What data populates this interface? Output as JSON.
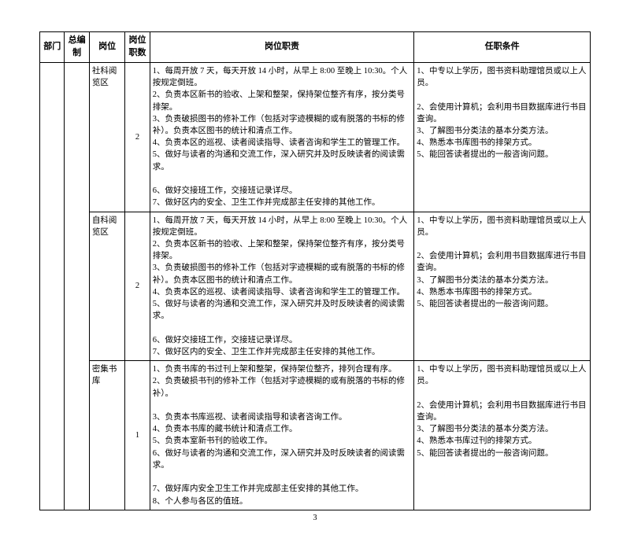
{
  "headers": {
    "department": "部门",
    "total_staff": "总编制",
    "position": "岗位",
    "position_count": "岗位职数",
    "duties": "岗位职责",
    "requirements": "任职条件"
  },
  "rows": [
    {
      "position": "社科阅览区",
      "count": "2",
      "duties_lines": [
        "1、每周开放 7 天，每天开放 14 小时，从早上 8:00 至晚上 10:30。个人按规定倒班。",
        "2、负责本区新书的验收、上架和整架，保持架位整齐有序，按分类号排架。",
        "3、负责破损图书的修补工作（包括对字迹模糊的或有脱落的书标的修补）。负责本区图书的统计和清点工作。",
        "4、负责本区的巡视、读者阅读指导、读者咨询和学生工的管理工作。",
        "5、做好与读者的沟通和交流工作，深入研究并及时反映读者的阅读需求。",
        "",
        "6、做好交接班工作，交接班记录详尽。",
        "7、做好区内的安全、卫生工作并完成部主任安排的其他工作。"
      ],
      "requirements_lines": [
        "1、中专以上学历，图书资料助理馆员或以上人员。",
        "",
        "2、会使用计算机；会利用书目数据库进行书目查询。",
        "3、了解图书分类法的基本分类方法。",
        "4、熟悉本书库图书的排架方式。",
        "5、能回答读者提出的一般咨询问题。"
      ]
    },
    {
      "position": "自科阅览区",
      "count": "2",
      "duties_lines": [
        "1、每周开放 7 天，每天开放 14 小时，从早上 8:00 至晚上 10:30。个人按规定倒班。",
        "2、负责本区新书的验收、上架和整架，保持架位整齐有序，按分类号排架。",
        "3、负责破损图书的修补工作（包括对字迹模糊的或有脱落的书标的修补）。负责本区图书的统计和清点工作。",
        "4、负责本区的巡视、读者阅读指导、读者咨询和学生工的管理工作。",
        "5、做好与读者的沟通和交流工作，深入研究并及时反映读者的阅读需求。",
        "",
        "6、做好交接班工作，交接班记录详尽。",
        "7、做好区内的安全、卫生工作并完成部主任安排的其他工作。"
      ],
      "requirements_lines": [
        "1、中专以上学历，图书资料助理馆员或以上人员。",
        "",
        "2、会使用计算机；会利用书目数据库进行书目查询。",
        "3、了解图书分类法的基本分类方法。",
        "4、熟悉本书库图书的排架方式。",
        "5、能回答读者提出的一般咨询问题。"
      ]
    },
    {
      "position": "密集书库",
      "count": "1",
      "duties_lines": [
        "1、负责书库的书过刊上架和整架，保持架位整齐，排列合理有序。",
        "2、负责破损书刊的修补工作（包括对字迹模糊的或有脱落的书标的修补）。",
        "",
        "3、负责本书库巡视、读者阅读指导和读者咨询工作。",
        "4、负责本书库的藏书统计和清点工作。",
        "5、负责本室新书刊的验收工作。",
        "6、做好与读者的沟通和交流工作，深入研究并及时反映读者的阅读需求。",
        "",
        "7、做好库内安全卫生工作并完成部主任安排的其他工作。",
        "8、个人参与各区的值班。"
      ],
      "requirements_lines": [
        "1、中专以上学历，图书资料助理馆员或以上人员。",
        "",
        "2、会使用计算机；会利用书目数据库进行书目查询。",
        "3、了解图书分类法的基本分类方法。",
        "4、熟悉本书库过刊的排架方式。",
        "5、能回答读者提出的一般咨询问题。"
      ]
    }
  ],
  "page_number": "3"
}
